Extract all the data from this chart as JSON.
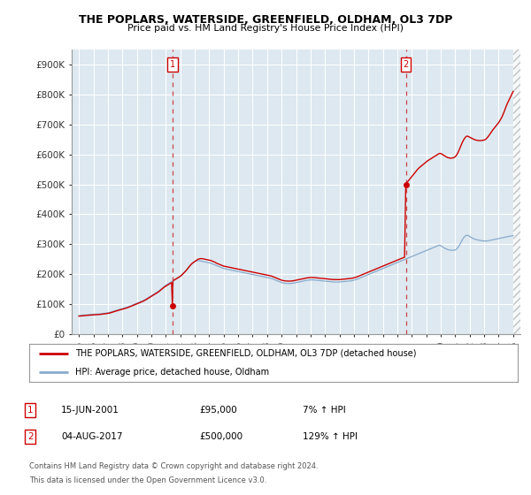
{
  "title": "THE POPLARS, WATERSIDE, GREENFIELD, OLDHAM, OL3 7DP",
  "subtitle": "Price paid vs. HM Land Registry's House Price Index (HPI)",
  "ytick_labels": [
    "£0",
    "£100K",
    "£200K",
    "£300K",
    "£400K",
    "£500K",
    "£600K",
    "£700K",
    "£800K",
    "£900K"
  ],
  "ytick_values": [
    0,
    100000,
    200000,
    300000,
    400000,
    500000,
    600000,
    700000,
    800000,
    900000
  ],
  "ylim": [
    0,
    950000
  ],
  "xlim": [
    1994.5,
    2025.5
  ],
  "hpi_x": [
    1995.0,
    1995.1,
    1995.2,
    1995.3,
    1995.4,
    1995.5,
    1995.6,
    1995.7,
    1995.8,
    1995.9,
    1996.0,
    1996.1,
    1996.2,
    1996.3,
    1996.4,
    1996.5,
    1996.6,
    1996.7,
    1996.8,
    1996.9,
    1997.0,
    1997.1,
    1997.2,
    1997.3,
    1997.4,
    1997.5,
    1997.6,
    1997.7,
    1997.8,
    1997.9,
    1998.0,
    1998.1,
    1998.2,
    1998.3,
    1998.4,
    1998.5,
    1998.6,
    1998.7,
    1998.8,
    1998.9,
    1999.0,
    1999.1,
    1999.2,
    1999.3,
    1999.4,
    1999.5,
    1999.6,
    1999.7,
    1999.8,
    1999.9,
    2000.0,
    2000.1,
    2000.2,
    2000.3,
    2000.4,
    2000.5,
    2000.6,
    2000.7,
    2000.8,
    2000.9,
    2001.0,
    2001.1,
    2001.2,
    2001.3,
    2001.4,
    2001.5,
    2001.6,
    2001.7,
    2001.8,
    2001.9,
    2002.0,
    2002.1,
    2002.2,
    2002.3,
    2002.4,
    2002.5,
    2002.6,
    2002.7,
    2002.8,
    2002.9,
    2003.0,
    2003.1,
    2003.2,
    2003.3,
    2003.4,
    2003.5,
    2003.6,
    2003.7,
    2003.8,
    2003.9,
    2004.0,
    2004.1,
    2004.2,
    2004.3,
    2004.4,
    2004.5,
    2004.6,
    2004.7,
    2004.8,
    2004.9,
    2005.0,
    2005.1,
    2005.2,
    2005.3,
    2005.4,
    2005.5,
    2005.6,
    2005.7,
    2005.8,
    2005.9,
    2006.0,
    2006.1,
    2006.2,
    2006.3,
    2006.4,
    2006.5,
    2006.6,
    2006.7,
    2006.8,
    2006.9,
    2007.0,
    2007.1,
    2007.2,
    2007.3,
    2007.4,
    2007.5,
    2007.6,
    2007.7,
    2007.8,
    2007.9,
    2008.0,
    2008.1,
    2008.2,
    2008.3,
    2008.4,
    2008.5,
    2008.6,
    2008.7,
    2008.8,
    2008.9,
    2009.0,
    2009.1,
    2009.2,
    2009.3,
    2009.4,
    2009.5,
    2009.6,
    2009.7,
    2009.8,
    2009.9,
    2010.0,
    2010.1,
    2010.2,
    2010.3,
    2010.4,
    2010.5,
    2010.6,
    2010.7,
    2010.8,
    2010.9,
    2011.0,
    2011.1,
    2011.2,
    2011.3,
    2011.4,
    2011.5,
    2011.6,
    2011.7,
    2011.8,
    2011.9,
    2012.0,
    2012.1,
    2012.2,
    2012.3,
    2012.4,
    2012.5,
    2012.6,
    2012.7,
    2012.8,
    2012.9,
    2013.0,
    2013.1,
    2013.2,
    2013.3,
    2013.4,
    2013.5,
    2013.6,
    2013.7,
    2013.8,
    2013.9,
    2014.0,
    2014.1,
    2014.2,
    2014.3,
    2014.4,
    2014.5,
    2014.6,
    2014.7,
    2014.8,
    2014.9,
    2015.0,
    2015.1,
    2015.2,
    2015.3,
    2015.4,
    2015.5,
    2015.6,
    2015.7,
    2015.8,
    2015.9,
    2016.0,
    2016.1,
    2016.2,
    2016.3,
    2016.4,
    2016.5,
    2016.6,
    2016.7,
    2016.8,
    2016.9,
    2017.0,
    2017.1,
    2017.2,
    2017.3,
    2017.4,
    2017.5,
    2017.6,
    2017.7,
    2017.8,
    2017.9,
    2018.0,
    2018.1,
    2018.2,
    2018.3,
    2018.4,
    2018.5,
    2018.6,
    2018.7,
    2018.8,
    2018.9,
    2019.0,
    2019.1,
    2019.2,
    2019.3,
    2019.4,
    2019.5,
    2019.6,
    2019.7,
    2019.8,
    2019.9,
    2020.0,
    2020.1,
    2020.2,
    2020.3,
    2020.4,
    2020.5,
    2020.6,
    2020.7,
    2020.8,
    2020.9,
    2021.0,
    2021.1,
    2021.2,
    2021.3,
    2021.4,
    2021.5,
    2021.6,
    2021.7,
    2021.8,
    2021.9,
    2022.0,
    2022.1,
    2022.2,
    2022.3,
    2022.4,
    2022.5,
    2022.6,
    2022.7,
    2022.8,
    2022.9,
    2023.0,
    2023.1,
    2023.2,
    2023.3,
    2023.4,
    2023.5,
    2023.6,
    2023.7,
    2023.8,
    2023.9,
    2024.0,
    2024.1,
    2024.2,
    2024.3,
    2024.4,
    2024.5,
    2024.6,
    2024.7,
    2024.8,
    2024.9,
    2025.0
  ],
  "hpi_y": [
    62000,
    62500,
    63000,
    63500,
    64000,
    64500,
    65000,
    65200,
    65500,
    65800,
    66000,
    66300,
    66700,
    67000,
    67500,
    68000,
    68500,
    69000,
    69800,
    70500,
    71000,
    72000,
    73500,
    75000,
    76500,
    78000,
    79500,
    81000,
    82500,
    84000,
    85000,
    86500,
    88000,
    89500,
    91000,
    93000,
    95000,
    97000,
    99000,
    101000,
    103000,
    105000,
    107000,
    109000,
    111000,
    113500,
    116000,
    119000,
    122000,
    125000,
    128000,
    131000,
    134000,
    137000,
    140000,
    143000,
    147000,
    151000,
    155000,
    159000,
    163000,
    166000,
    169000,
    172000,
    175000,
    178000,
    181000,
    184000,
    187000,
    190000,
    193000,
    197000,
    202000,
    207000,
    212000,
    218000,
    224000,
    230000,
    235000,
    239000,
    242000,
    244000,
    245000,
    245000,
    244000,
    243000,
    242000,
    241000,
    240000,
    239000,
    238000,
    237000,
    235000,
    233000,
    231000,
    229000,
    227000,
    225000,
    223000,
    221000,
    219000,
    218000,
    217000,
    216000,
    215000,
    214000,
    213000,
    212000,
    211000,
    210000,
    209000,
    208000,
    207000,
    206000,
    205000,
    204000,
    203000,
    202000,
    201000,
    200000,
    199000,
    198000,
    197000,
    196000,
    195000,
    194000,
    193000,
    192000,
    191000,
    190000,
    189000,
    188000,
    187000,
    186000,
    184000,
    182000,
    180000,
    178000,
    176000,
    174000,
    172000,
    171000,
    170000,
    169500,
    169000,
    169000,
    169000,
    169500,
    170000,
    171000,
    172000,
    173000,
    174000,
    175000,
    176000,
    177000,
    178000,
    179000,
    180000,
    180500,
    181000,
    181000,
    181000,
    180500,
    180000,
    179500,
    179000,
    178500,
    178000,
    177500,
    177000,
    176500,
    176000,
    175500,
    175000,
    174500,
    174000,
    174000,
    174000,
    174000,
    174000,
    174500,
    175000,
    175500,
    176000,
    176500,
    177000,
    177500,
    178000,
    179000,
    180000,
    181500,
    183000,
    185000,
    187000,
    189000,
    191000,
    193000,
    195000,
    197000,
    199000,
    201000,
    203000,
    205000,
    207000,
    209000,
    211000,
    213000,
    215000,
    217000,
    219000,
    221000,
    223000,
    225000,
    227000,
    229000,
    231000,
    233000,
    235000,
    237000,
    239000,
    241000,
    243000,
    245000,
    247000,
    249000,
    251000,
    253000,
    255000,
    257000,
    259000,
    261000,
    263000,
    265000,
    267000,
    269000,
    271000,
    273000,
    275000,
    277000,
    279000,
    281000,
    283000,
    285000,
    287000,
    289000,
    291000,
    293000,
    295000,
    297000,
    295000,
    292000,
    289000,
    286000,
    284000,
    282000,
    281000,
    280000,
    280000,
    280000,
    281000,
    284000,
    290000,
    298000,
    307000,
    316000,
    323000,
    328000,
    330000,
    329000,
    326000,
    323000,
    320000,
    318000,
    316000,
    315000,
    314000,
    313000,
    312000,
    311000,
    311000,
    311000,
    311000,
    312000,
    313000,
    314000,
    315000,
    316000,
    317000,
    318000,
    319000,
    320000,
    321000,
    322000,
    323000,
    324000,
    325000,
    326000,
    327000,
    328000,
    329000
  ],
  "prop_x": [
    1995.0,
    1995.1,
    1995.2,
    1995.3,
    1995.4,
    1995.5,
    1995.6,
    1995.7,
    1995.8,
    1995.9,
    1996.0,
    1996.1,
    1996.2,
    1996.3,
    1996.4,
    1996.5,
    1996.6,
    1996.7,
    1996.8,
    1996.9,
    1997.0,
    1997.1,
    1997.2,
    1997.3,
    1997.4,
    1997.5,
    1997.6,
    1997.7,
    1997.8,
    1997.9,
    1998.0,
    1998.1,
    1998.2,
    1998.3,
    1998.4,
    1998.5,
    1998.6,
    1998.7,
    1998.8,
    1998.9,
    1999.0,
    1999.1,
    1999.2,
    1999.3,
    1999.4,
    1999.5,
    1999.6,
    1999.7,
    1999.8,
    1999.9,
    2000.0,
    2000.1,
    2000.2,
    2000.3,
    2000.4,
    2000.5,
    2000.6,
    2000.7,
    2000.8,
    2000.9,
    2001.0,
    2001.1,
    2001.2,
    2001.3,
    2001.4,
    2001.458,
    2001.5,
    2001.6,
    2001.7,
    2001.8,
    2001.9,
    2002.0,
    2002.1,
    2002.2,
    2002.3,
    2002.4,
    2002.5,
    2002.6,
    2002.7,
    2002.8,
    2002.9,
    2003.0,
    2003.1,
    2003.2,
    2003.3,
    2003.4,
    2003.5,
    2003.6,
    2003.7,
    2003.8,
    2003.9,
    2004.0,
    2004.1,
    2004.2,
    2004.3,
    2004.4,
    2004.5,
    2004.6,
    2004.7,
    2004.8,
    2004.9,
    2005.0,
    2005.1,
    2005.2,
    2005.3,
    2005.4,
    2005.5,
    2005.6,
    2005.7,
    2005.8,
    2005.9,
    2006.0,
    2006.1,
    2006.2,
    2006.3,
    2006.4,
    2006.5,
    2006.6,
    2006.7,
    2006.8,
    2006.9,
    2007.0,
    2007.1,
    2007.2,
    2007.3,
    2007.4,
    2007.5,
    2007.6,
    2007.7,
    2007.8,
    2007.9,
    2008.0,
    2008.1,
    2008.2,
    2008.3,
    2008.4,
    2008.5,
    2008.6,
    2008.7,
    2008.8,
    2008.9,
    2009.0,
    2009.1,
    2009.2,
    2009.3,
    2009.4,
    2009.5,
    2009.6,
    2009.7,
    2009.8,
    2009.9,
    2010.0,
    2010.1,
    2010.2,
    2010.3,
    2010.4,
    2010.5,
    2010.6,
    2010.7,
    2010.8,
    2010.9,
    2011.0,
    2011.1,
    2011.2,
    2011.3,
    2011.4,
    2011.5,
    2011.6,
    2011.7,
    2011.8,
    2011.9,
    2012.0,
    2012.1,
    2012.2,
    2012.3,
    2012.4,
    2012.5,
    2012.6,
    2012.7,
    2012.8,
    2012.9,
    2013.0,
    2013.1,
    2013.2,
    2013.3,
    2013.4,
    2013.5,
    2013.6,
    2013.7,
    2013.8,
    2013.9,
    2014.0,
    2014.1,
    2014.2,
    2014.3,
    2014.4,
    2014.5,
    2014.6,
    2014.7,
    2014.8,
    2014.9,
    2015.0,
    2015.1,
    2015.2,
    2015.3,
    2015.4,
    2015.5,
    2015.6,
    2015.7,
    2015.8,
    2015.9,
    2016.0,
    2016.1,
    2016.2,
    2016.3,
    2016.4,
    2016.5,
    2016.6,
    2016.7,
    2016.8,
    2016.9,
    2017.0,
    2017.1,
    2017.2,
    2017.3,
    2017.4,
    2017.5,
    2017.583,
    2017.6,
    2017.7,
    2017.8,
    2017.9,
    2018.0,
    2018.1,
    2018.2,
    2018.3,
    2018.4,
    2018.5,
    2018.6,
    2018.7,
    2018.8,
    2018.9,
    2019.0,
    2019.1,
    2019.2,
    2019.3,
    2019.4,
    2019.5,
    2019.6,
    2019.7,
    2019.8,
    2019.9,
    2020.0,
    2020.1,
    2020.2,
    2020.3,
    2020.4,
    2020.5,
    2020.6,
    2020.7,
    2020.8,
    2020.9,
    2021.0,
    2021.1,
    2021.2,
    2021.3,
    2021.4,
    2021.5,
    2021.6,
    2021.7,
    2021.8,
    2021.9,
    2022.0,
    2022.1,
    2022.2,
    2022.3,
    2022.4,
    2022.5,
    2022.6,
    2022.7,
    2022.8,
    2022.9,
    2023.0,
    2023.1,
    2023.2,
    2023.3,
    2023.4,
    2023.5,
    2023.6,
    2023.7,
    2023.8,
    2023.9,
    2024.0,
    2024.1,
    2024.2,
    2024.3,
    2024.4,
    2024.5,
    2024.6,
    2024.7,
    2024.8,
    2024.9,
    2025.0
  ],
  "prop_y": [
    60000,
    60500,
    61000,
    61500,
    62000,
    62500,
    63000,
    63200,
    63500,
    63800,
    64000,
    64300,
    64700,
    65000,
    65500,
    66000,
    66500,
    67000,
    67800,
    68500,
    69000,
    70000,
    71500,
    73000,
    74500,
    76000,
    77500,
    79000,
    80500,
    82000,
    83000,
    84500,
    86000,
    87500,
    89000,
    91000,
    93000,
    95000,
    97000,
    99000,
    101000,
    103000,
    105000,
    107000,
    109000,
    111500,
    114000,
    117000,
    120000,
    123000,
    126000,
    129000,
    132000,
    135000,
    138000,
    141000,
    145000,
    149000,
    153000,
    157000,
    160000,
    163000,
    166000,
    169000,
    172000,
    95000,
    178000,
    181000,
    184000,
    187000,
    190000,
    193000,
    197000,
    202000,
    207000,
    212000,
    218000,
    224000,
    230000,
    235000,
    239000,
    242000,
    246000,
    249000,
    251000,
    252000,
    252000,
    251000,
    250000,
    249000,
    248000,
    247000,
    246000,
    244000,
    242000,
    240000,
    237000,
    235000,
    233000,
    231000,
    229000,
    227000,
    226000,
    225000,
    224000,
    223000,
    222000,
    221000,
    220000,
    219000,
    218000,
    217000,
    216000,
    215000,
    214000,
    213000,
    212000,
    211000,
    210000,
    209000,
    208000,
    207000,
    206000,
    205000,
    204000,
    203000,
    202000,
    201000,
    200000,
    199000,
    198000,
    197000,
    196000,
    195000,
    194000,
    192000,
    190000,
    188000,
    186000,
    184000,
    182000,
    180000,
    179000,
    178000,
    177500,
    177000,
    177000,
    177000,
    177500,
    178000,
    179000,
    180000,
    181000,
    182000,
    183000,
    184000,
    185000,
    186000,
    187000,
    188000,
    188500,
    189000,
    189000,
    189000,
    188500,
    188000,
    187500,
    187000,
    186500,
    186000,
    185500,
    185000,
    184500,
    184000,
    183500,
    183000,
    182500,
    182000,
    182000,
    182000,
    182000,
    182000,
    182500,
    183000,
    183500,
    184000,
    184500,
    185000,
    185500,
    186000,
    187000,
    188000,
    189500,
    191000,
    193000,
    195000,
    197000,
    199000,
    201000,
    203000,
    205000,
    207000,
    209000,
    211000,
    213000,
    215000,
    217000,
    219000,
    221000,
    223000,
    225000,
    227000,
    229000,
    231000,
    233000,
    235000,
    237000,
    239000,
    241000,
    243000,
    245000,
    247000,
    249000,
    251000,
    253000,
    255000,
    257000,
    500000,
    503000,
    508000,
    514000,
    520000,
    526000,
    532000,
    538000,
    544000,
    550000,
    555000,
    559000,
    563000,
    567000,
    571000,
    575000,
    579000,
    582000,
    585000,
    588000,
    591000,
    594000,
    597000,
    600000,
    603000,
    603000,
    600000,
    597000,
    594000,
    591000,
    589000,
    588000,
    587000,
    588000,
    589000,
    592000,
    598000,
    607000,
    618000,
    630000,
    641000,
    650000,
    657000,
    661000,
    660000,
    657000,
    655000,
    652000,
    650000,
    648000,
    647000,
    646000,
    646000,
    646000,
    647000,
    648000,
    650000,
    655000,
    661000,
    668000,
    675000,
    682000,
    688000,
    694000,
    700000,
    706000,
    714000,
    722000,
    733000,
    745000,
    758000,
    770000,
    780000,
    790000,
    800000,
    810000
  ],
  "sale1_x": 2001.458,
  "sale1_y": 95000,
  "sale2_x": 2017.583,
  "sale2_y": 500000,
  "color_property": "#cc0000",
  "color_hpi": "#88aacc",
  "color_bg": "#dde8f0",
  "color_dashed": "#cc4444",
  "xtick_years": [
    1995,
    1996,
    1997,
    1998,
    1999,
    2000,
    2001,
    2002,
    2003,
    2004,
    2005,
    2006,
    2007,
    2008,
    2009,
    2010,
    2011,
    2012,
    2013,
    2014,
    2015,
    2016,
    2017,
    2018,
    2019,
    2020,
    2021,
    2022,
    2023,
    2024,
    2025
  ],
  "legend_property": "THE POPLARS, WATERSIDE, GREENFIELD, OLDHAM, OL3 7DP (detached house)",
  "legend_hpi": "HPI: Average price, detached house, Oldham",
  "table": [
    {
      "num": "1",
      "date": "15-JUN-2001",
      "price": "£95,000",
      "change": "7% ↑ HPI"
    },
    {
      "num": "2",
      "date": "04-AUG-2017",
      "price": "£500,000",
      "change": "129% ↑ HPI"
    }
  ],
  "footnote_line1": "Contains HM Land Registry data © Crown copyright and database right 2024.",
  "footnote_line2": "This data is licensed under the Open Government Licence v3.0."
}
